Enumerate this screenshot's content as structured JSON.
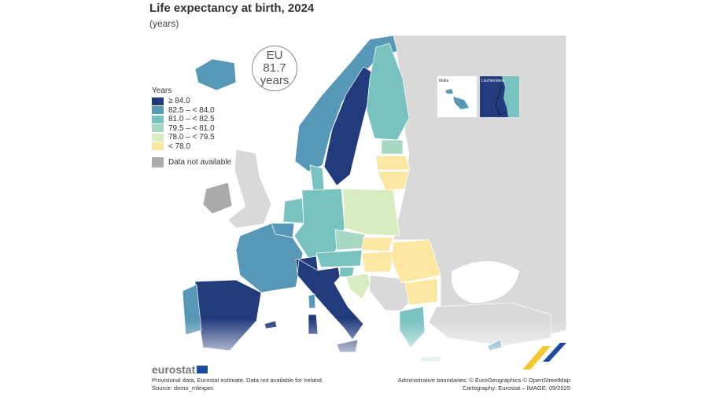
{
  "title": "Life expectancy at birth, 2024",
  "subtitle": "(years)",
  "eu_bubble": {
    "line1": "EU",
    "line2": "81.7",
    "line3": "years"
  },
  "legend": {
    "title": "Years",
    "classes": [
      {
        "label": "≥ 84.0",
        "color": "#213b7c"
      },
      {
        "label": "82.5 – < 84.0",
        "color": "#5698b6"
      },
      {
        "label": "81.0 – < 82.5",
        "color": "#78c2bf"
      },
      {
        "label": "79.5 – < 81.0",
        "color": "#a8d8c2"
      },
      {
        "label": "78.0 – < 79.5",
        "color": "#d9ecc0"
      },
      {
        "label": "< 78.0",
        "color": "#fbe7a1"
      }
    ],
    "not_available": {
      "label": "Data not available",
      "color": "#aaaaaa"
    }
  },
  "insets": {
    "malta": "Malta",
    "liechtenstein": "Liechtenstein"
  },
  "footer": {
    "logo": "eurostat",
    "note": "Provisional data, Eurostat estimate. Data not available for Ireland.",
    "source": "Source: demo_mlexpec",
    "boundaries": "Administrative boundaries: © EuroGeographics © OpenStreetMap",
    "cartography": "Cartography: Eurostat – IMAGE, 09/2025"
  }
}
